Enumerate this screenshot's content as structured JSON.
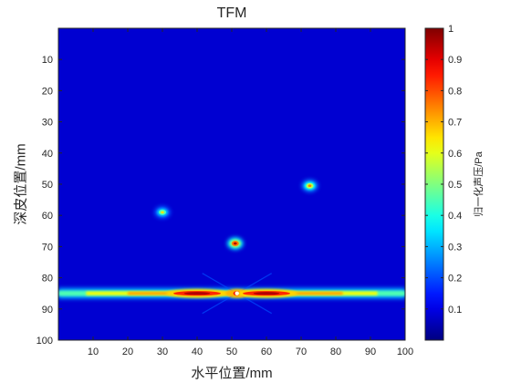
{
  "chart_data": {
    "type": "heatmap",
    "title": "TFM",
    "xlabel": "水平位置/mm",
    "ylabel": "深皮位置/mm",
    "colorbar_label": "归一化声压/Pa",
    "colormap": "jet",
    "xlim": [
      0,
      100
    ],
    "ylim": [
      0,
      100
    ],
    "y_reversed": true,
    "clim": [
      0,
      1
    ],
    "x_ticks": [
      10,
      20,
      30,
      40,
      50,
      60,
      70,
      80,
      90,
      100
    ],
    "y_ticks": [
      10,
      20,
      30,
      40,
      50,
      60,
      70,
      80,
      90,
      100
    ],
    "colorbar_ticks": [
      0.1,
      0.2,
      0.3,
      0.4,
      0.5,
      0.6,
      0.7,
      0.8,
      0.9,
      1
    ],
    "background_value": 0.08,
    "point_scatterers": [
      {
        "x": 30,
        "y": 59,
        "peak": 0.45
      },
      {
        "x": 51,
        "y": 69,
        "peak": 0.75
      },
      {
        "x": 72.5,
        "y": 50.5,
        "peak": 0.55
      }
    ],
    "line_reflector": {
      "y": 85,
      "x_range": [
        0,
        100
      ],
      "peaks": [
        {
          "x": 40,
          "value": 0.95
        },
        {
          "x": 51.5,
          "value": 1.0
        },
        {
          "x": 60,
          "value": 0.95
        }
      ]
    }
  }
}
